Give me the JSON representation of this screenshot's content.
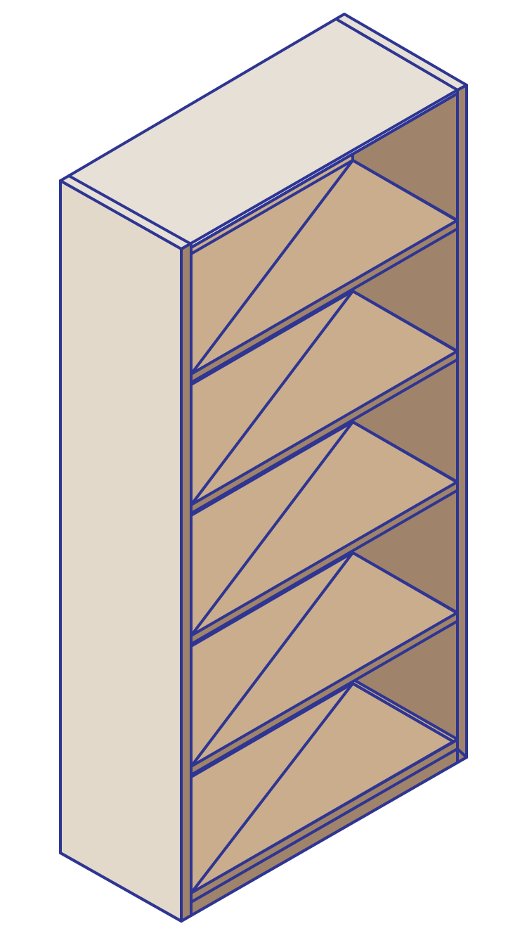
{
  "illustration": {
    "subject": "bookshelf-icon",
    "shelf_count": 5,
    "colors": {
      "outline": "#2E3592",
      "top": "#E6E0D6",
      "side": "#E2D9CA",
      "back_wall": "#A0836B",
      "shelf": "#CAAD8D",
      "edge": "#A0836B"
    }
  }
}
